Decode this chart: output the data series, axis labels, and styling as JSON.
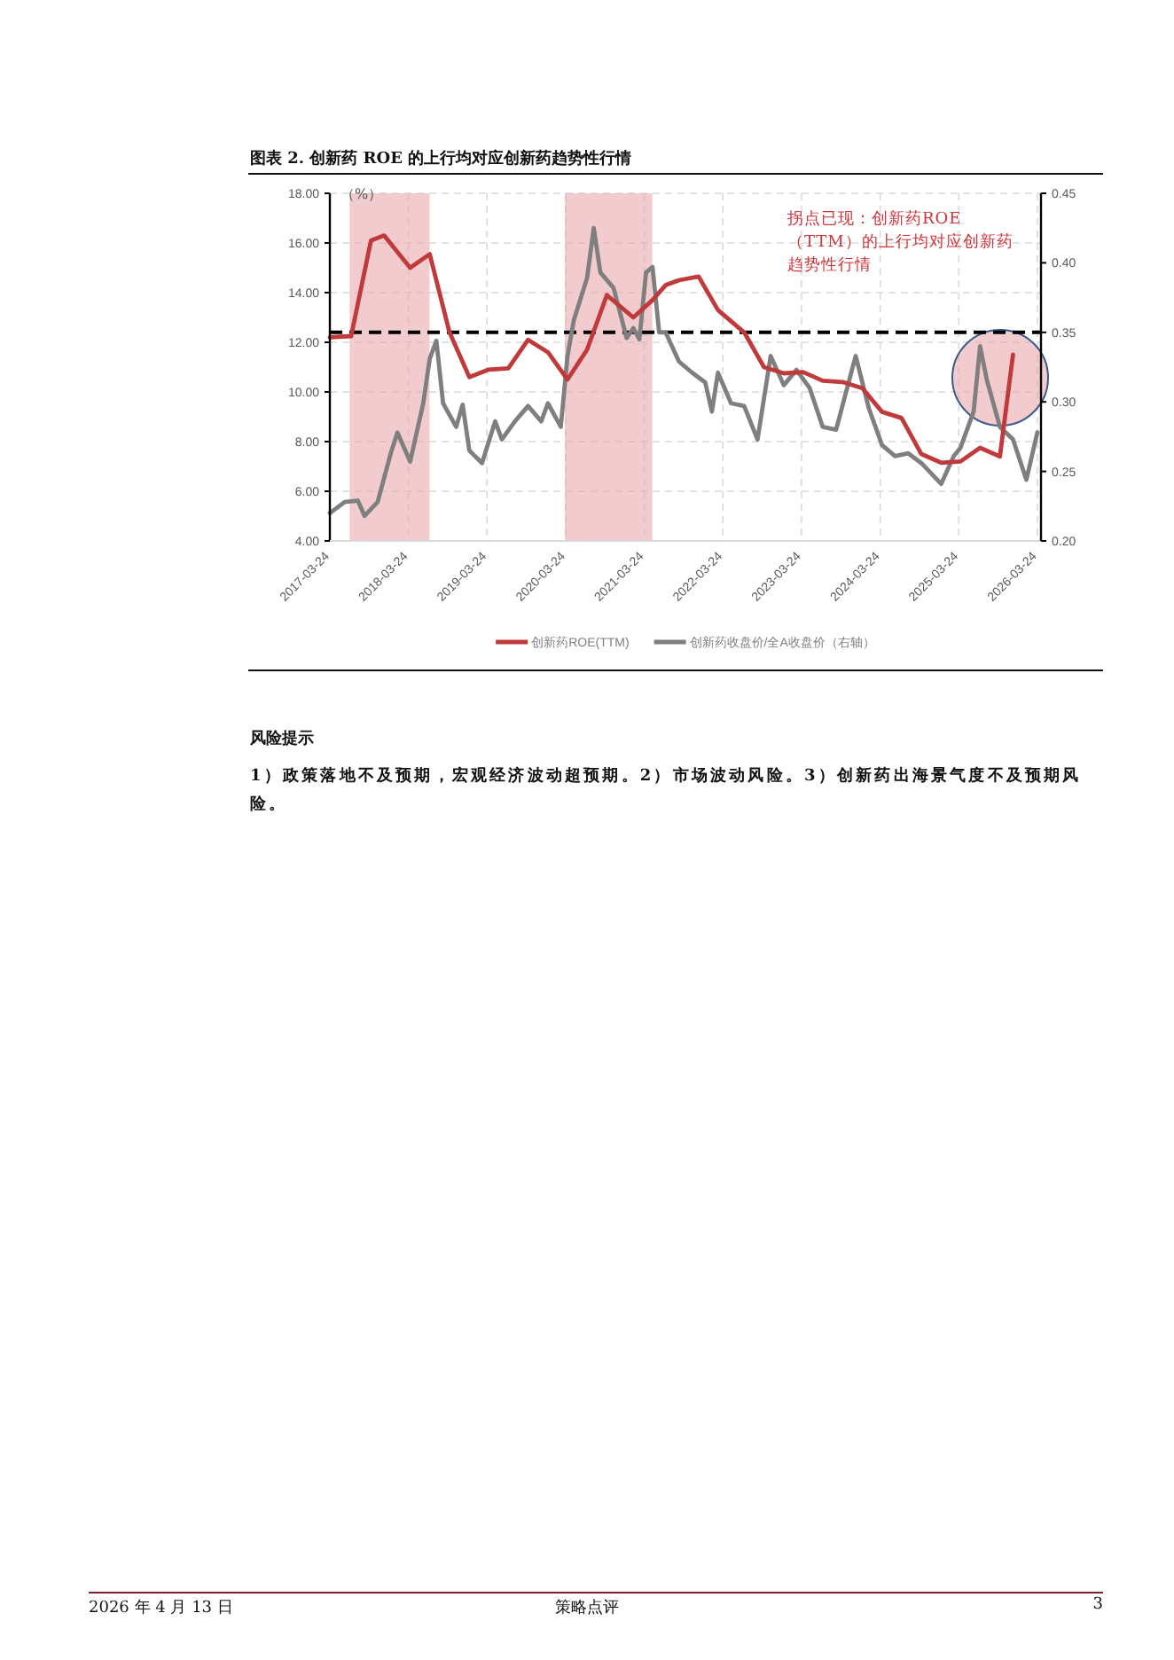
{
  "chart_data": {
    "type": "line",
    "title": "图表 2. 创新药 ROE 的上行均对应创新药趋势性行情",
    "ylabel": "（%）",
    "legend": "bottom",
    "grid": true,
    "line_style": "solid",
    "marker": "none",
    "xlim": [
      "2017-03-24",
      "2026-04-10"
    ],
    "xticks": [
      "2017-03-24",
      "2018-03-24",
      "2019-03-24",
      "2020-03-24",
      "2021-03-24",
      "2022-03-24",
      "2023-03-24",
      "2024-03-24",
      "2025-03-24",
      "2026-03-24"
    ],
    "ylim": [
      4,
      18
    ],
    "yticks": [
      {
        "value": 4,
        "label": "4.00"
      },
      {
        "value": 6,
        "label": "6.00"
      },
      {
        "value": 8,
        "label": "8.00"
      },
      {
        "value": 10,
        "label": "10.00"
      },
      {
        "value": 12,
        "label": "12.00"
      },
      {
        "value": 14,
        "label": "14.00"
      },
      {
        "value": 16,
        "label": "16.00"
      },
      {
        "value": 18,
        "label": "18.00"
      }
    ],
    "y2lim": [
      0.2,
      0.45
    ],
    "y2ticks": [
      {
        "value": 0.2,
        "label": "0.20"
      },
      {
        "value": 0.25,
        "label": "0.25"
      },
      {
        "value": 0.3,
        "label": "0.30"
      },
      {
        "value": 0.35,
        "label": "0.35"
      },
      {
        "value": 0.4,
        "label": "0.40"
      },
      {
        "value": 0.45,
        "label": "0.45"
      }
    ],
    "series": [
      {
        "name": "创新药ROE(TTM)",
        "color": "#c0393b",
        "x": [
          "2017-03-24",
          "2017-07",
          "2017-10",
          "2017-12",
          "2018-04",
          "2018-07",
          "2018-10",
          "2019-01",
          "2019-04",
          "2019-07",
          "2019-10",
          "2020-01",
          "2020-04",
          "2020-07",
          "2020-10",
          "2021-02",
          "2021-05",
          "2021-07",
          "2021-09",
          "2021-12",
          "2022-03",
          "2022-07",
          "2022-10",
          "2023-01",
          "2023-04",
          "2023-07",
          "2023-10",
          "2024-01",
          "2024-04",
          "2024-07",
          "2024-10",
          "2025-01",
          "2025-04",
          "2025-07",
          "2025-10",
          "2025-12"
        ],
        "values": [
          12.2,
          12.25,
          16.1,
          16.3,
          15.0,
          15.55,
          12.4,
          10.6,
          10.9,
          10.95,
          12.1,
          11.6,
          10.5,
          11.7,
          13.9,
          13.0,
          13.7,
          14.3,
          14.5,
          14.65,
          13.3,
          12.4,
          11.0,
          10.75,
          10.8,
          10.45,
          10.4,
          10.15,
          9.2,
          8.95,
          7.5,
          7.15,
          7.2,
          7.75,
          7.4,
          11.5
        ]
      },
      {
        "name": "创新药收盘价/全A收盘价（右轴）",
        "color": "#7f7f7f",
        "axis": "y2",
        "x": [
          "2017-03-24",
          "2017-06",
          "2017-08",
          "2017-09",
          "2017-11",
          "2018-01",
          "2018-02",
          "2018-04",
          "2018-06",
          "2018-07",
          "2018-08",
          "2018-09",
          "2018-11",
          "2018-12",
          "2019-01",
          "2019-03",
          "2019-05",
          "2019-06",
          "2019-08",
          "2019-10",
          "2019-12",
          "2020-01",
          "2020-03",
          "2020-04",
          "2020-05",
          "2020-07",
          "2020-08",
          "2020-09",
          "2020-11",
          "2021-01",
          "2021-02",
          "2021-03",
          "2021-04",
          "2021-05",
          "2021-06",
          "2021-07",
          "2021-09",
          "2021-11",
          "2022-01",
          "2022-02",
          "2022-03",
          "2022-05",
          "2022-07",
          "2022-09",
          "2022-11",
          "2023-01",
          "2023-03",
          "2023-05",
          "2023-07",
          "2023-09",
          "2023-12",
          "2024-02",
          "2024-04",
          "2024-06",
          "2024-08",
          "2024-10",
          "2025-01",
          "2025-03",
          "2025-04",
          "2025-06",
          "2025-07",
          "2025-08",
          "2025-10",
          "2025-12",
          "2026-02",
          "2026-03-24"
        ],
        "values": [
          0.22,
          0.228,
          0.229,
          0.218,
          0.228,
          0.263,
          0.278,
          0.257,
          0.299,
          0.331,
          0.344,
          0.299,
          0.282,
          0.298,
          0.265,
          0.256,
          0.286,
          0.273,
          0.286,
          0.297,
          0.286,
          0.299,
          0.282,
          0.333,
          0.359,
          0.389,
          0.425,
          0.393,
          0.382,
          0.346,
          0.353,
          0.345,
          0.393,
          0.397,
          0.35,
          0.35,
          0.329,
          0.321,
          0.314,
          0.293,
          0.321,
          0.299,
          0.297,
          0.273,
          0.333,
          0.312,
          0.323,
          0.31,
          0.282,
          0.28,
          0.333,
          0.295,
          0.269,
          0.261,
          0.263,
          0.256,
          0.241,
          0.261,
          0.267,
          0.293,
          0.34,
          0.316,
          0.282,
          0.273,
          0.244,
          0.278
        ]
      }
    ],
    "ref_lines": [
      {
        "axis": "y",
        "value": 12.4,
        "color": "#000000",
        "line_style": "dashed"
      }
    ],
    "bands": [
      {
        "axis": "x",
        "from": "2017-06-24",
        "to": "2018-06-30",
        "color": "#e8a9ad"
      },
      {
        "axis": "x",
        "from": "2020-03-20",
        "to": "2021-04-30",
        "color": "#e8a9ad"
      }
    ],
    "annotations": [
      "拐点已现：创新药ROE（TTM）的上行均对应创新药趋势性行情",
      "风险提示",
      "1）政策落地不及预期，宏观经济波动超预期。2）市场波动风险。3）创新药出海景气度不及预期风险。",
      "2026 年 4 月 13 日",
      "策略点评",
      "3"
    ]
  }
}
